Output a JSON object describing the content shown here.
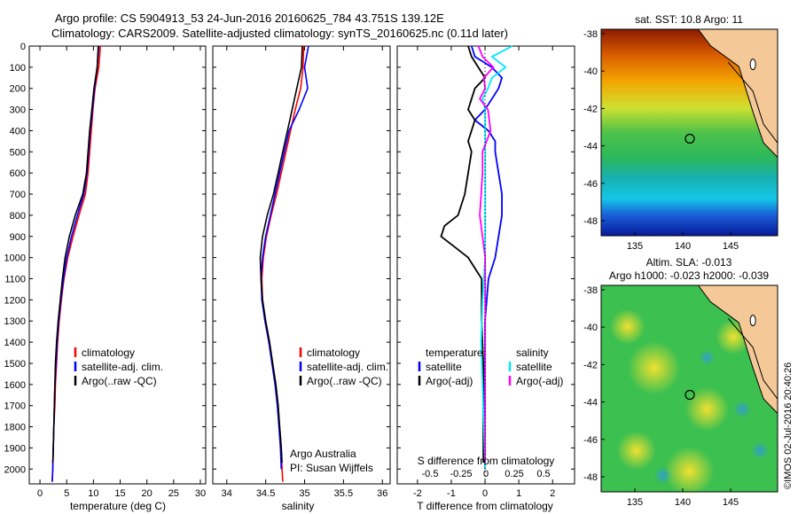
{
  "header": {
    "line1": "Argo profile: CS 5904913_53 24-Jun-2016 20160625_784 43.751S 139.12E",
    "line2": "Climatology: CARS2009. Satellite-adjusted climatology: synTS_20160625.nc (0.11d later)"
  },
  "colors": {
    "climatology": "#ff0000",
    "satellite": "#0000ff",
    "argo": "#000000",
    "sal_satellite": "#00e6ff",
    "sal_argo": "#ff00ff"
  },
  "depth_ticks": [
    "0",
    "100",
    "200",
    "300",
    "400",
    "500",
    "600",
    "700",
    "800",
    "900",
    "1000",
    "1100",
    "1200",
    "1300",
    "1400",
    "1500",
    "1600",
    "1700",
    "1800",
    "1900",
    "2000"
  ],
  "temp_panel": {
    "xlabel": "temperature (deg C)",
    "xticks": [
      "0",
      "5",
      "10",
      "15",
      "20",
      "25",
      "30"
    ],
    "legend": [
      "climatology",
      "satellite-adj. clim.",
      "Argo(..raw -QC)"
    ]
  },
  "sal_panel": {
    "xlabel": "salinity",
    "xticks": [
      "34",
      "34.5",
      "35",
      "35.5",
      "36"
    ],
    "legend": [
      "climatology",
      "satellite-adj. clim.",
      "Argo(..raw -QC)"
    ],
    "note1": "Argo Australia",
    "note2": "PI: Susan Wijffels"
  },
  "diff_panel": {
    "xlabel": "T difference from climatology",
    "xticks": [
      "-2",
      "-1",
      "0",
      "1",
      "2"
    ],
    "top_xlabel": "S difference from climatology",
    "top_xticks": [
      "-0.5",
      "-0.25",
      "0",
      "0.25",
      "0.5"
    ],
    "legend_t_title": "temperature",
    "legend_t": [
      "satellite",
      "Argo(-adj)"
    ],
    "legend_s_title": "salinity",
    "legend_s": [
      "satellite",
      "Argo(-adj)"
    ]
  },
  "sst_map": {
    "title": "sat. SST: 10.8 Argo: 11",
    "yticks": [
      "-38",
      "-40",
      "-42",
      "-44",
      "-46",
      "-48"
    ],
    "xticks": [
      "135",
      "140",
      "145"
    ]
  },
  "sla_map": {
    "title1": "Altim. SLA: -0.013",
    "title2": "Argo h1000: -0.023 h2000: -0.039",
    "yticks": [
      "-38",
      "-40",
      "-42",
      "-44",
      "-46",
      "-48"
    ],
    "xticks": [
      "135",
      "140",
      "145"
    ]
  },
  "watermark": "©IMOS 02-Jul-2016 20:40:26",
  "chart_data": [
    {
      "type": "line",
      "xlabel": "temperature (deg C)",
      "ylabel": "",
      "xlim": [
        -2,
        31
      ],
      "ylim": [
        2070,
        0
      ],
      "series": [
        {
          "name": "climatology",
          "depth": [
            0,
            100,
            200,
            300,
            400,
            500,
            600,
            700,
            800,
            900,
            1000,
            1100,
            1200,
            1300,
            1400,
            1500,
            1600,
            1700,
            1800,
            1900,
            2000,
            2060
          ],
          "values": [
            11.3,
            11.0,
            10.3,
            9.9,
            9.6,
            9.3,
            9.0,
            8.5,
            7.3,
            6.2,
            5.2,
            4.5,
            4.0,
            3.6,
            3.3,
            3.1,
            2.9,
            2.8,
            2.6,
            2.5,
            2.4,
            2.3
          ]
        },
        {
          "name": "satellite-adj. clim.",
          "depth": [
            0,
            100,
            200,
            300,
            400,
            500,
            600,
            700,
            800,
            900,
            1000,
            1100,
            1200,
            1300,
            1400,
            1500,
            1600,
            1700,
            1800,
            1900,
            2000,
            2060
          ],
          "values": [
            11.0,
            10.7,
            10.2,
            9.8,
            9.4,
            9.1,
            8.8,
            8.2,
            7.0,
            5.9,
            5.0,
            4.4,
            3.9,
            3.5,
            3.2,
            3.0,
            2.8,
            2.7,
            2.6,
            2.5,
            2.4,
            2.3
          ]
        },
        {
          "name": "Argo(..raw -QC)",
          "depth": [
            0,
            100,
            200,
            300,
            400,
            500,
            600,
            700,
            800,
            900,
            1000,
            1100,
            1200,
            1300,
            1400,
            1500,
            1600,
            1700,
            1800,
            1900,
            1970
          ],
          "values": [
            10.9,
            10.7,
            10.1,
            9.7,
            9.3,
            9.0,
            8.7,
            8.0,
            6.6,
            5.5,
            4.7,
            4.2,
            3.8,
            3.4,
            3.1,
            2.9,
            2.8,
            2.7,
            2.6,
            2.5,
            2.4
          ]
        }
      ]
    },
    {
      "type": "line",
      "xlabel": "salinity",
      "ylabel": "",
      "xlim": [
        33.82,
        36.1
      ],
      "ylim": [
        2070,
        0
      ],
      "series": [
        {
          "name": "climatology",
          "depth": [
            0,
            100,
            200,
            300,
            400,
            500,
            600,
            700,
            800,
            900,
            1000,
            1100,
            1200,
            1300,
            1400,
            1500,
            1600,
            1700,
            1800,
            1900,
            2000,
            2060
          ],
          "values": [
            34.99,
            34.98,
            34.95,
            34.88,
            34.82,
            34.76,
            34.7,
            34.64,
            34.57,
            34.51,
            34.47,
            34.45,
            34.46,
            34.5,
            34.55,
            34.59,
            34.63,
            34.66,
            34.68,
            34.7,
            34.71,
            34.72
          ]
        },
        {
          "name": "satellite-adj. clim.",
          "depth": [
            0,
            100,
            200,
            300,
            400,
            500,
            600,
            700,
            800,
            900,
            1000,
            1100,
            1200,
            1300,
            1400,
            1500,
            1600,
            1700,
            1800,
            1900,
            2000
          ],
          "values": [
            35.05,
            35.0,
            35.04,
            34.93,
            34.8,
            34.74,
            34.68,
            34.62,
            34.56,
            34.5,
            34.46,
            34.44,
            34.45,
            34.49,
            34.54,
            34.58,
            34.62,
            34.65,
            34.67,
            34.69,
            34.7
          ]
        },
        {
          "name": "Argo(..raw -QC)",
          "depth": [
            0,
            100,
            200,
            300,
            400,
            500,
            600,
            700,
            800,
            900,
            1000,
            1100,
            1200,
            1300,
            1400,
            1500,
            1600,
            1700,
            1800,
            1900,
            1970
          ],
          "values": [
            34.97,
            34.96,
            34.9,
            34.84,
            34.78,
            34.72,
            34.66,
            34.6,
            34.52,
            34.46,
            34.43,
            34.44,
            34.46,
            34.5,
            34.55,
            34.59,
            34.63,
            34.66,
            34.68,
            34.7,
            34.71
          ]
        }
      ]
    },
    {
      "type": "line",
      "xlabel": "T difference from climatology",
      "ylabel": "",
      "xlim": [
        -2.6,
        2.65
      ],
      "ylim": [
        2070,
        0
      ],
      "series": [
        {
          "name": "satellite",
          "depth": [
            0,
            50,
            100,
            150,
            200,
            250,
            300,
            350,
            400,
            450,
            500,
            600,
            700,
            800,
            900,
            1000,
            1100,
            1300,
            1500,
            1700,
            1900,
            2000
          ],
          "values": [
            -0.4,
            -0.3,
            0.2,
            0.5,
            0.4,
            0.2,
            0.0,
            -0.3,
            0.1,
            0.3,
            0.3,
            0.4,
            0.5,
            0.5,
            0.4,
            0.3,
            0.1,
            0.0,
            0.0,
            0.0,
            0.0,
            0.0
          ]
        },
        {
          "name": "Argo(-adj)",
          "depth": [
            0,
            50,
            100,
            150,
            200,
            250,
            300,
            350,
            400,
            450,
            500,
            600,
            700,
            800,
            850,
            900,
            950,
            1000,
            1050,
            1100,
            1300,
            1500,
            1700,
            1900,
            1970
          ],
          "values": [
            -0.5,
            -0.4,
            -0.2,
            0.0,
            -0.3,
            -0.4,
            -0.5,
            -0.3,
            -0.4,
            -0.5,
            -0.4,
            -0.5,
            -0.6,
            -0.8,
            -1.2,
            -1.3,
            -0.9,
            -0.5,
            -0.3,
            -0.1,
            -0.1,
            -0.05,
            -0.05,
            -0.05,
            -0.05
          ]
        }
      ]
    },
    {
      "type": "line",
      "xlabel": "S difference from climatology",
      "ylabel": "",
      "xlim": [
        -0.65,
        0.66
      ],
      "ylim": [
        2070,
        0
      ],
      "series": [
        {
          "name": "satellite",
          "depth": [
            0,
            50,
            100,
            150,
            200,
            250,
            300,
            400,
            500,
            600,
            700,
            800,
            900,
            1000,
            1100,
            1200,
            1400,
            1600,
            1800,
            2000
          ],
          "values": [
            0.2,
            0.05,
            0.15,
            0.05,
            0.02,
            -0.02,
            0.0,
            0.0,
            0.0,
            0.0,
            0.0,
            0.0,
            0.0,
            0.0,
            -0.01,
            -0.02,
            -0.03,
            -0.02,
            -0.01,
            0.0
          ]
        },
        {
          "name": "Argo(-adj)",
          "depth": [
            0,
            50,
            100,
            150,
            200,
            250,
            300,
            400,
            500,
            600,
            700,
            800,
            900,
            1000,
            1100,
            1300,
            1500,
            1700,
            1900,
            1970
          ],
          "values": [
            -0.05,
            -0.02,
            0.06,
            -0.01,
            0.0,
            -0.04,
            0.02,
            0.04,
            -0.02,
            -0.02,
            -0.03,
            -0.04,
            -0.02,
            0.0,
            0.0,
            0.0,
            0.0,
            0.0,
            0.0,
            0.0
          ]
        }
      ]
    }
  ]
}
